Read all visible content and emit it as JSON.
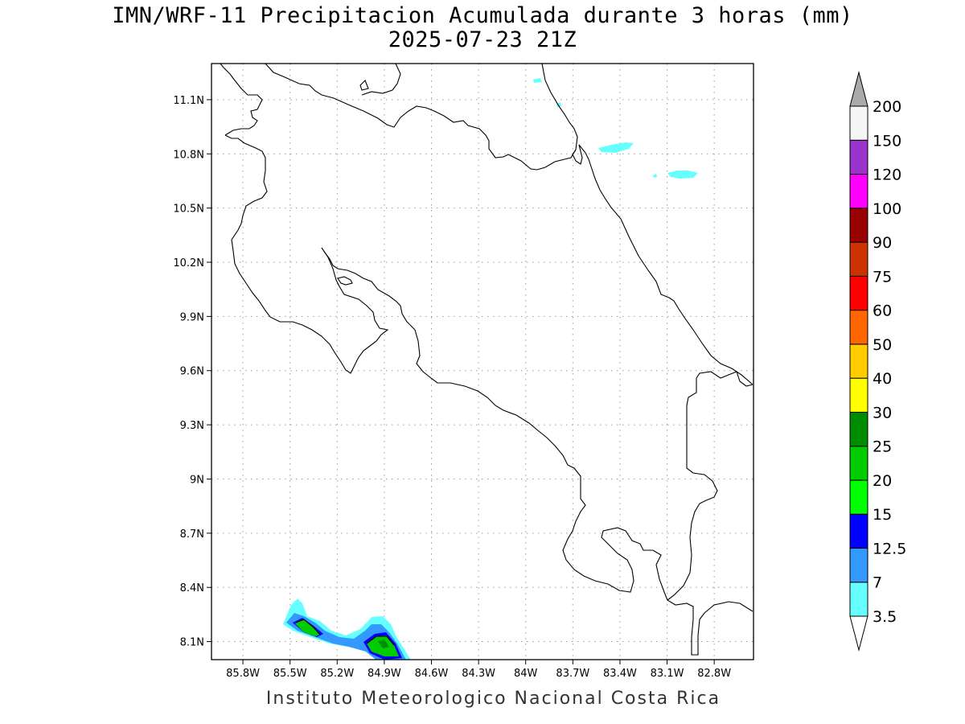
{
  "title": "IMN/WRF-11 Precipitacion Acumulada durante 3 horas (mm)",
  "subtitle": "2025-07-23 21Z",
  "credit": "Instituto Meteorologico Nacional Costa Rica",
  "map": {
    "lon_range": [
      -86.0,
      -82.55
    ],
    "lat_range": [
      8.0,
      11.3
    ],
    "lon_ticks": [
      {
        "value": -85.8,
        "label": "85.8W"
      },
      {
        "value": -85.5,
        "label": "85.5W"
      },
      {
        "value": -85.2,
        "label": "85.2W"
      },
      {
        "value": -84.9,
        "label": "84.9W"
      },
      {
        "value": -84.6,
        "label": "84.6W"
      },
      {
        "value": -84.3,
        "label": "84.3W"
      },
      {
        "value": -84.0,
        "label": "84W"
      },
      {
        "value": -83.7,
        "label": "83.7W"
      },
      {
        "value": -83.4,
        "label": "83.4W"
      },
      {
        "value": -83.1,
        "label": "83.1W"
      },
      {
        "value": -82.8,
        "label": "82.8W"
      }
    ],
    "lat_ticks": [
      {
        "value": 11.1,
        "label": "11.1N"
      },
      {
        "value": 10.8,
        "label": "10.8N"
      },
      {
        "value": 10.5,
        "label": "10.5N"
      },
      {
        "value": 10.2,
        "label": "10.2N"
      },
      {
        "value": 9.9,
        "label": "9.9N"
      },
      {
        "value": 9.6,
        "label": "9.6N"
      },
      {
        "value": 9.3,
        "label": "9.3N"
      },
      {
        "value": 9.0,
        "label": "9N"
      },
      {
        "value": 8.7,
        "label": "8.7N"
      },
      {
        "value": 8.4,
        "label": "8.4N"
      },
      {
        "value": 8.1,
        "label": "8.1N"
      }
    ],
    "grid": true
  },
  "legend": {
    "levels": [
      {
        "label": "3.5",
        "color": "#66ffff"
      },
      {
        "label": "7",
        "color": "#3399ff"
      },
      {
        "label": "12.5",
        "color": "#0000ff"
      },
      {
        "label": "15",
        "color": "#00ff00"
      },
      {
        "label": "20",
        "color": "#00cc00"
      },
      {
        "label": "25",
        "color": "#008c00"
      },
      {
        "label": "30",
        "color": "#ffff00"
      },
      {
        "label": "40",
        "color": "#ffcc00"
      },
      {
        "label": "50",
        "color": "#ff6600"
      },
      {
        "label": "60",
        "color": "#ff0000"
      },
      {
        "label": "75",
        "color": "#cc3300"
      },
      {
        "label": "90",
        "color": "#990000"
      },
      {
        "label": "100",
        "color": "#ff00ff"
      },
      {
        "label": "120",
        "color": "#9933cc"
      },
      {
        "label": "150",
        "color": "#f5f5f5"
      },
      {
        "label": "200",
        "color": "#aaaaaa"
      }
    ]
  }
}
